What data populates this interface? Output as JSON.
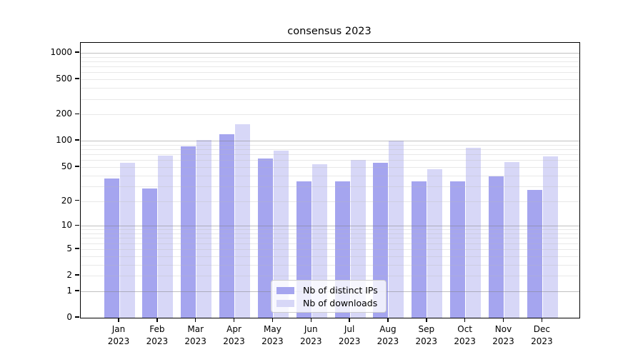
{
  "title": "consensus 2023",
  "chart_data": {
    "type": "bar",
    "title": "consensus 2023",
    "categories": [
      "Jan 2023",
      "Feb 2023",
      "Mar 2023",
      "Apr 2023",
      "May 2023",
      "Jun 2023",
      "Jul 2023",
      "Aug 2023",
      "Sep 2023",
      "Oct 2023",
      "Nov 2023",
      "Dec 2023"
    ],
    "series": [
      {
        "name": "Nb of distinct IPs",
        "color": "#a5a5ef",
        "values": [
          37,
          28,
          86,
          119,
          63,
          34,
          34,
          56,
          34,
          34,
          39,
          27
        ]
      },
      {
        "name": "Nb of downloads",
        "color": "#d7d7f7",
        "values": [
          56,
          67,
          103,
          156,
          77,
          54,
          60,
          100,
          47,
          83,
          57,
          66
        ]
      }
    ],
    "xlabel": "",
    "ylabel": "",
    "yscale": "log1p",
    "ylim": [
      0,
      1300
    ],
    "yticks": [
      1000,
      500,
      200,
      100,
      50,
      20,
      10,
      5,
      2,
      1,
      0
    ],
    "major_gridline_values": [
      1,
      10,
      100,
      1000
    ],
    "grid": true,
    "legend_position": "lower center"
  },
  "colors": {
    "axis": "#000000",
    "background": "#ffffff",
    "minor_grid": "#ececec",
    "major_grid": "#c4c4c4"
  }
}
